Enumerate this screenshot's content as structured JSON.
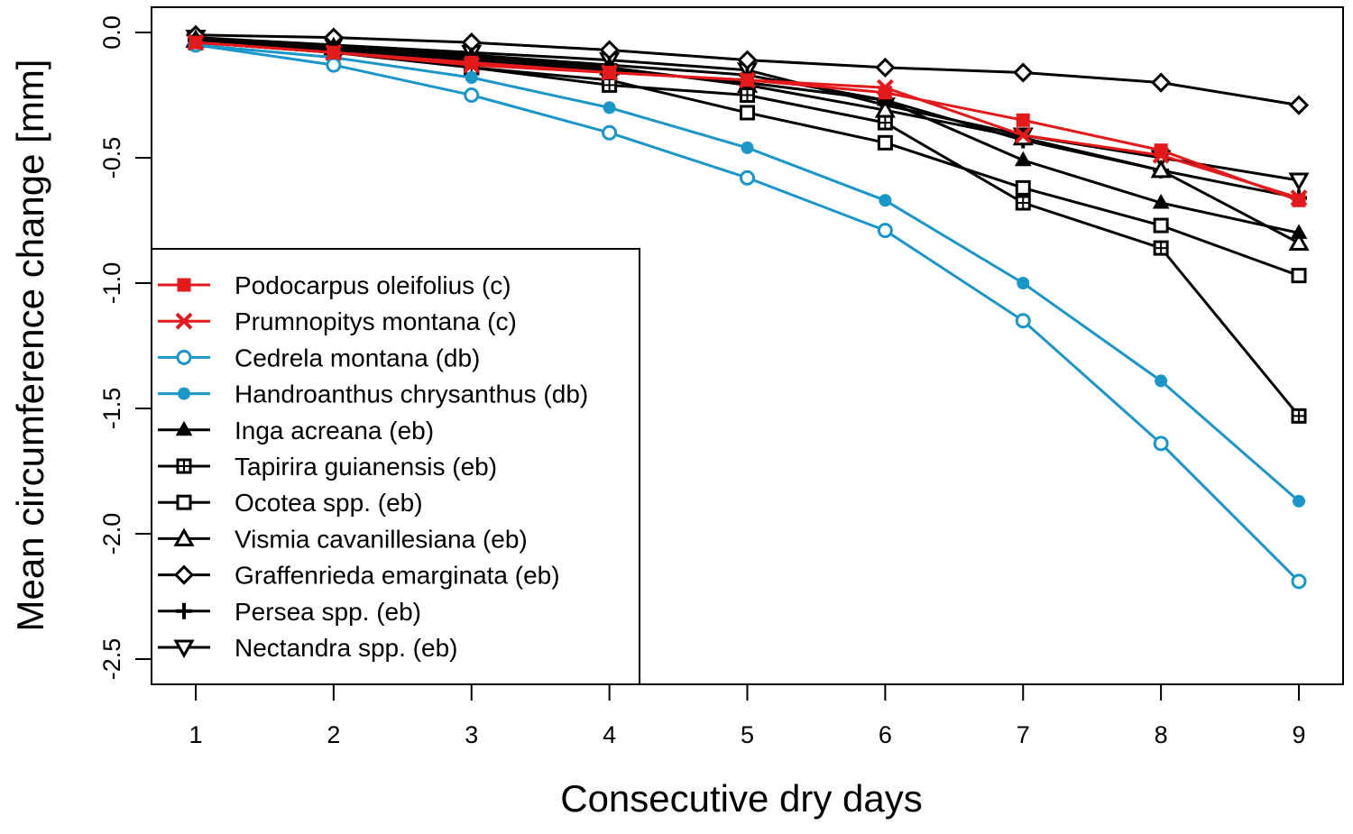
{
  "chart_data": {
    "type": "line",
    "title": "",
    "xlabel": "Consecutive dry days",
    "ylabel": "Mean circumference change [mm]",
    "x": [
      1,
      2,
      3,
      4,
      5,
      6,
      7,
      8,
      9
    ],
    "xlim": [
      1,
      9
    ],
    "ylim": [
      -2.5,
      0.0
    ],
    "xticks": [
      "1",
      "2",
      "3",
      "4",
      "5",
      "6",
      "7",
      "8",
      "9"
    ],
    "yticks": [
      {
        "value": 0.0,
        "label": "0.0"
      },
      {
        "value": -0.5,
        "label": "-0.5"
      },
      {
        "value": -1.0,
        "label": "-1.0"
      },
      {
        "value": -1.5,
        "label": "-1.5"
      },
      {
        "value": -2.0,
        "label": "-2.0"
      },
      {
        "value": -2.5,
        "label": "-2.5"
      }
    ],
    "legend_position": "bottom-left",
    "grid": false,
    "series": [
      {
        "name": "Podocarpus oleifolius (c)",
        "color": "#e31a1c",
        "marker": "filled-square",
        "values": [
          -0.04,
          -0.08,
          -0.12,
          -0.16,
          -0.19,
          -0.24,
          -0.35,
          -0.47,
          -0.67
        ]
      },
      {
        "name": "Prumnopitys montana (c)",
        "color": "#e31a1c",
        "marker": "cross",
        "values": [
          -0.04,
          -0.08,
          -0.13,
          -0.16,
          -0.19,
          -0.22,
          -0.41,
          -0.49,
          -0.66
        ]
      },
      {
        "name": "Cedrela montana (db)",
        "color": "#1a96c8",
        "marker": "open-circle",
        "values": [
          -0.05,
          -0.13,
          -0.25,
          -0.4,
          -0.58,
          -0.79,
          -1.15,
          -1.64,
          -2.19
        ]
      },
      {
        "name": "Handroanthus chrysanthus (db)",
        "color": "#1a96c8",
        "marker": "filled-circle",
        "values": [
          -0.05,
          -0.1,
          -0.18,
          -0.3,
          -0.46,
          -0.67,
          -1.0,
          -1.39,
          -1.87
        ]
      },
      {
        "name": "Inga acreana (eb)",
        "color": "#000000",
        "marker": "filled-triangle",
        "values": [
          -0.03,
          -0.07,
          -0.11,
          -0.15,
          -0.2,
          -0.27,
          -0.51,
          -0.68,
          -0.8
        ]
      },
      {
        "name": "Tapirira guianensis (eb)",
        "color": "#000000",
        "marker": "boxed-plus",
        "values": [
          -0.04,
          -0.08,
          -0.14,
          -0.21,
          -0.25,
          -0.36,
          -0.68,
          -0.86,
          -1.53
        ]
      },
      {
        "name": "Ocotea spp. (eb)",
        "color": "#000000",
        "marker": "open-square",
        "values": [
          -0.04,
          -0.08,
          -0.14,
          -0.19,
          -0.32,
          -0.44,
          -0.62,
          -0.77,
          -0.97
        ]
      },
      {
        "name": "Vismia cavanillesiana (eb)",
        "color": "#000000",
        "marker": "open-triangle",
        "values": [
          -0.03,
          -0.06,
          -0.1,
          -0.14,
          -0.21,
          -0.31,
          -0.42,
          -0.55,
          -0.84
        ]
      },
      {
        "name": "Graffenrieda emarginata (eb)",
        "color": "#000000",
        "marker": "open-diamond",
        "values": [
          -0.01,
          -0.02,
          -0.04,
          -0.07,
          -0.11,
          -0.14,
          -0.16,
          -0.2,
          -0.29
        ]
      },
      {
        "name": "Persea spp. (eb)",
        "color": "#000000",
        "marker": "plus",
        "values": [
          -0.03,
          -0.06,
          -0.09,
          -0.13,
          -0.17,
          -0.27,
          -0.43,
          -0.55,
          -0.66
        ]
      },
      {
        "name": "Nectandra spp. (eb)",
        "color": "#000000",
        "marker": "open-triangle-down",
        "values": [
          -0.02,
          -0.05,
          -0.08,
          -0.11,
          -0.15,
          -0.29,
          -0.41,
          -0.5,
          -0.59
        ]
      }
    ]
  }
}
